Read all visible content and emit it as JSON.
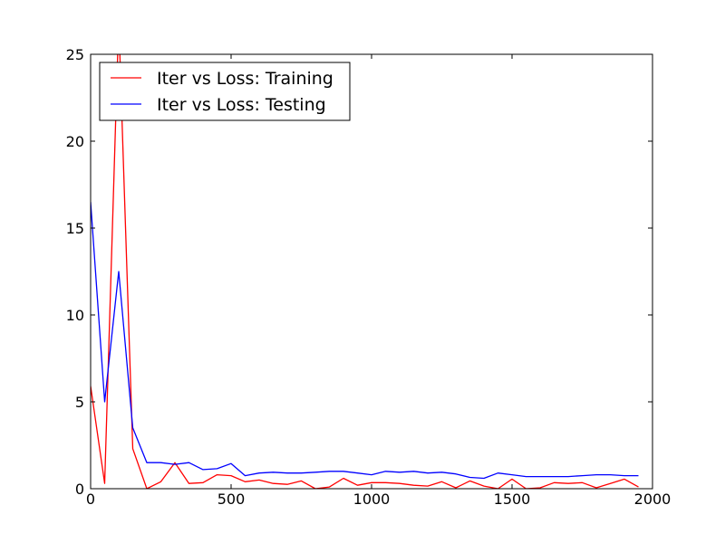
{
  "chart_data": {
    "type": "line",
    "title": "",
    "xlabel": "",
    "ylabel": "",
    "xlim": [
      0,
      2000
    ],
    "ylim": [
      0,
      25
    ],
    "xticks": [
      0,
      500,
      1000,
      1500,
      2000
    ],
    "yticks": [
      0,
      5,
      10,
      15,
      20,
      25
    ],
    "grid": false,
    "legend_position": "top-left",
    "series": [
      {
        "name": "Iter vs Loss: Training",
        "color": "#ff0000",
        "x": [
          0,
          50,
          100,
          150,
          200,
          250,
          300,
          350,
          400,
          450,
          500,
          550,
          600,
          650,
          700,
          750,
          800,
          850,
          900,
          950,
          1000,
          1050,
          1100,
          1150,
          1200,
          1250,
          1300,
          1350,
          1400,
          1450,
          1500,
          1550,
          1600,
          1650,
          1700,
          1750,
          1800,
          1850,
          1900,
          1950
        ],
        "y": [
          5.9,
          0.3,
          27.0,
          2.3,
          0.0,
          0.4,
          1.5,
          0.3,
          0.35,
          0.8,
          0.75,
          0.4,
          0.5,
          0.3,
          0.25,
          0.45,
          0.0,
          0.1,
          0.6,
          0.2,
          0.35,
          0.35,
          0.3,
          0.2,
          0.15,
          0.4,
          0.05,
          0.45,
          0.15,
          0.0,
          0.55,
          0.0,
          0.05,
          0.35,
          0.3,
          0.35,
          0.05,
          0.3,
          0.55,
          0.1
        ]
      },
      {
        "name": "Iter vs Loss: Testing",
        "color": "#0000ff",
        "x": [
          0,
          50,
          100,
          150,
          200,
          250,
          300,
          350,
          400,
          450,
          500,
          550,
          600,
          650,
          700,
          750,
          800,
          850,
          900,
          950,
          1000,
          1050,
          1100,
          1150,
          1200,
          1250,
          1300,
          1350,
          1400,
          1450,
          1500,
          1550,
          1600,
          1650,
          1700,
          1750,
          1800,
          1850,
          1900,
          1950
        ],
        "y": [
          16.5,
          5.0,
          12.5,
          3.5,
          1.5,
          1.5,
          1.4,
          1.5,
          1.1,
          1.15,
          1.45,
          0.75,
          0.9,
          0.95,
          0.9,
          0.9,
          0.95,
          1.0,
          1.0,
          0.9,
          0.8,
          1.0,
          0.95,
          1.0,
          0.9,
          0.95,
          0.85,
          0.65,
          0.6,
          0.9,
          0.8,
          0.7,
          0.7,
          0.7,
          0.7,
          0.75,
          0.8,
          0.8,
          0.75,
          0.75
        ]
      }
    ]
  }
}
